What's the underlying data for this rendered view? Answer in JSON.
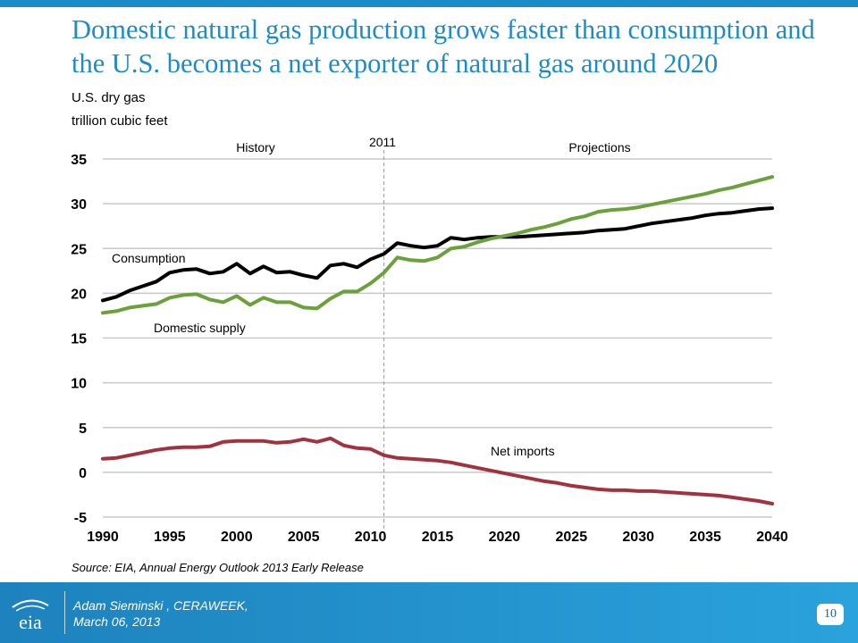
{
  "slide": {
    "title": "Domestic natural gas production grows faster than consumption and the U.S. becomes a net exporter of natural gas around 2020",
    "source": "Source:  EIA, Annual Energy Outlook 2013 Early Release",
    "accent_color": "#1c8cc8"
  },
  "footer": {
    "logo_text": "eia",
    "author": "Adam Sieminski , CERAWEEK,",
    "date": "March 06, 2013",
    "page_number": "10"
  },
  "chart_data": {
    "type": "line",
    "title": "",
    "ylabel_line1": "U.S. dry gas",
    "ylabel_line2": "trillion cubic feet",
    "xlim": [
      1990,
      2040
    ],
    "ylim": [
      -5,
      35
    ],
    "x_ticks": [
      "1990",
      "1995",
      "2000",
      "2005",
      "2010",
      "2015",
      "2020",
      "2025",
      "2030",
      "2035",
      "2040"
    ],
    "y_ticks": [
      "35",
      "30",
      "25",
      "20",
      "15",
      "10",
      "5",
      "0",
      "-5"
    ],
    "grid": "horizontal",
    "divider": {
      "x": 2011,
      "label": "2011"
    },
    "region_labels": {
      "history": "History",
      "projections": "Projections"
    },
    "x": [
      1990,
      1991,
      1992,
      1993,
      1994,
      1995,
      1996,
      1997,
      1998,
      1999,
      2000,
      2001,
      2002,
      2003,
      2004,
      2005,
      2006,
      2007,
      2008,
      2009,
      2010,
      2011,
      2012,
      2013,
      2014,
      2015,
      2016,
      2017,
      2018,
      2019,
      2020,
      2021,
      2022,
      2023,
      2024,
      2025,
      2026,
      2027,
      2028,
      2029,
      2030,
      2031,
      2032,
      2033,
      2034,
      2035,
      2036,
      2037,
      2038,
      2039,
      2040
    ],
    "series": [
      {
        "name": "Consumption",
        "color": "#000000",
        "values": [
          19.2,
          19.6,
          20.3,
          20.8,
          21.3,
          22.3,
          22.6,
          22.7,
          22.2,
          22.4,
          23.3,
          22.2,
          23.0,
          22.3,
          22.4,
          22.0,
          21.7,
          23.1,
          23.3,
          22.9,
          23.8,
          24.4,
          25.6,
          25.3,
          25.1,
          25.3,
          26.2,
          26.0,
          26.2,
          26.3,
          26.3,
          26.3,
          26.4,
          26.5,
          26.6,
          26.7,
          26.8,
          27.0,
          27.1,
          27.2,
          27.5,
          27.8,
          28.0,
          28.2,
          28.4,
          28.7,
          28.9,
          29.0,
          29.2,
          29.4,
          29.5
        ]
      },
      {
        "name": "Domestic supply",
        "color": "#6aa13a",
        "values": [
          17.8,
          18.0,
          18.4,
          18.6,
          18.8,
          19.5,
          19.8,
          19.9,
          19.3,
          19.0,
          19.7,
          18.7,
          19.5,
          19.0,
          19.0,
          18.4,
          18.3,
          19.4,
          20.2,
          20.2,
          21.1,
          22.3,
          24.0,
          23.7,
          23.6,
          24.0,
          25.0,
          25.2,
          25.7,
          26.1,
          26.4,
          26.7,
          27.1,
          27.4,
          27.8,
          28.3,
          28.6,
          29.1,
          29.3,
          29.4,
          29.6,
          29.9,
          30.2,
          30.5,
          30.8,
          31.1,
          31.5,
          31.8,
          32.2,
          32.6,
          33.0
        ]
      },
      {
        "name": "Net imports",
        "color": "#a3323f",
        "values": [
          1.5,
          1.6,
          1.9,
          2.2,
          2.5,
          2.7,
          2.8,
          2.8,
          2.9,
          3.4,
          3.5,
          3.5,
          3.5,
          3.3,
          3.4,
          3.7,
          3.4,
          3.8,
          3.0,
          2.7,
          2.6,
          1.9,
          1.6,
          1.5,
          1.4,
          1.3,
          1.1,
          0.8,
          0.5,
          0.2,
          -0.1,
          -0.4,
          -0.7,
          -1.0,
          -1.2,
          -1.5,
          -1.7,
          -1.9,
          -2.0,
          -2.0,
          -2.1,
          -2.1,
          -2.2,
          -2.3,
          -2.4,
          -2.5,
          -2.6,
          -2.8,
          -3.0,
          -3.2,
          -3.5
        ]
      }
    ]
  }
}
